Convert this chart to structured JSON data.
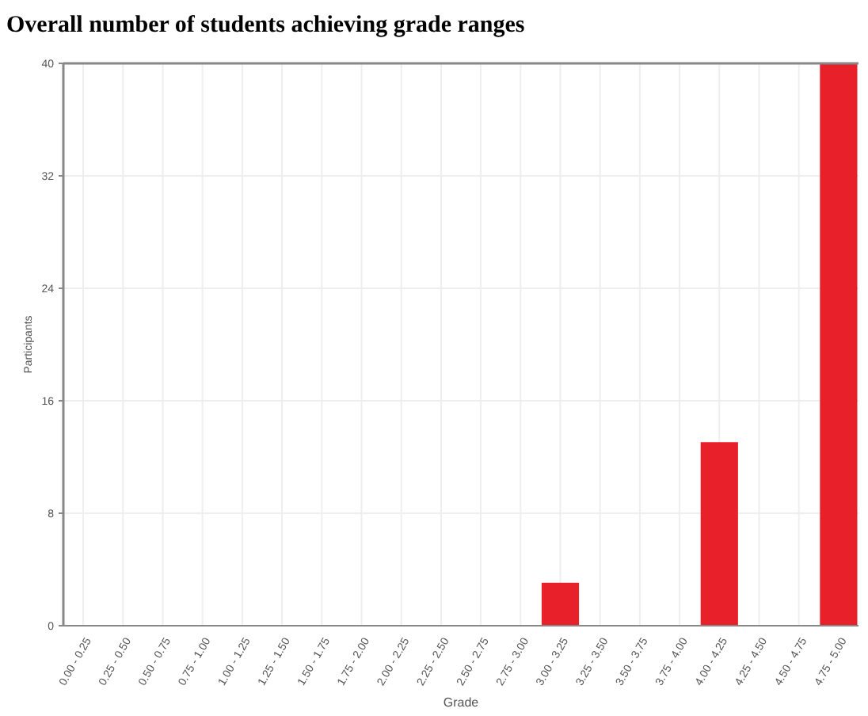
{
  "chart_data": {
    "type": "bar",
    "title": "Overall number of students achieving grade ranges",
    "xlabel": "Grade",
    "ylabel": "Participants",
    "categories": [
      "0.00 - 0.25",
      "0.25 - 0.50",
      "0.50 - 0.75",
      "0.75 - 1.00",
      "1.00 - 1.25",
      "1.25 - 1.50",
      "1.50 - 1.75",
      "1.75 - 2.00",
      "2.00 - 2.25",
      "2.25 - 2.50",
      "2.50 - 2.75",
      "2.75 - 3.00",
      "3.00 - 3.25",
      "3.25 - 3.50",
      "3.50 - 3.75",
      "3.75 - 4.00",
      "4.00 - 4.25",
      "4.25 - 4.50",
      "4.50 - 4.75",
      "4.75 - 5.00"
    ],
    "values": [
      0,
      0,
      0,
      0,
      0,
      0,
      0,
      0,
      0,
      0,
      0,
      0,
      3,
      0,
      0,
      0,
      13,
      0,
      0,
      40
    ],
    "color": "#e8202a",
    "ylim": [
      0,
      40
    ],
    "yticks": [
      0,
      8,
      16,
      24,
      32,
      40
    ],
    "grid": true
  }
}
